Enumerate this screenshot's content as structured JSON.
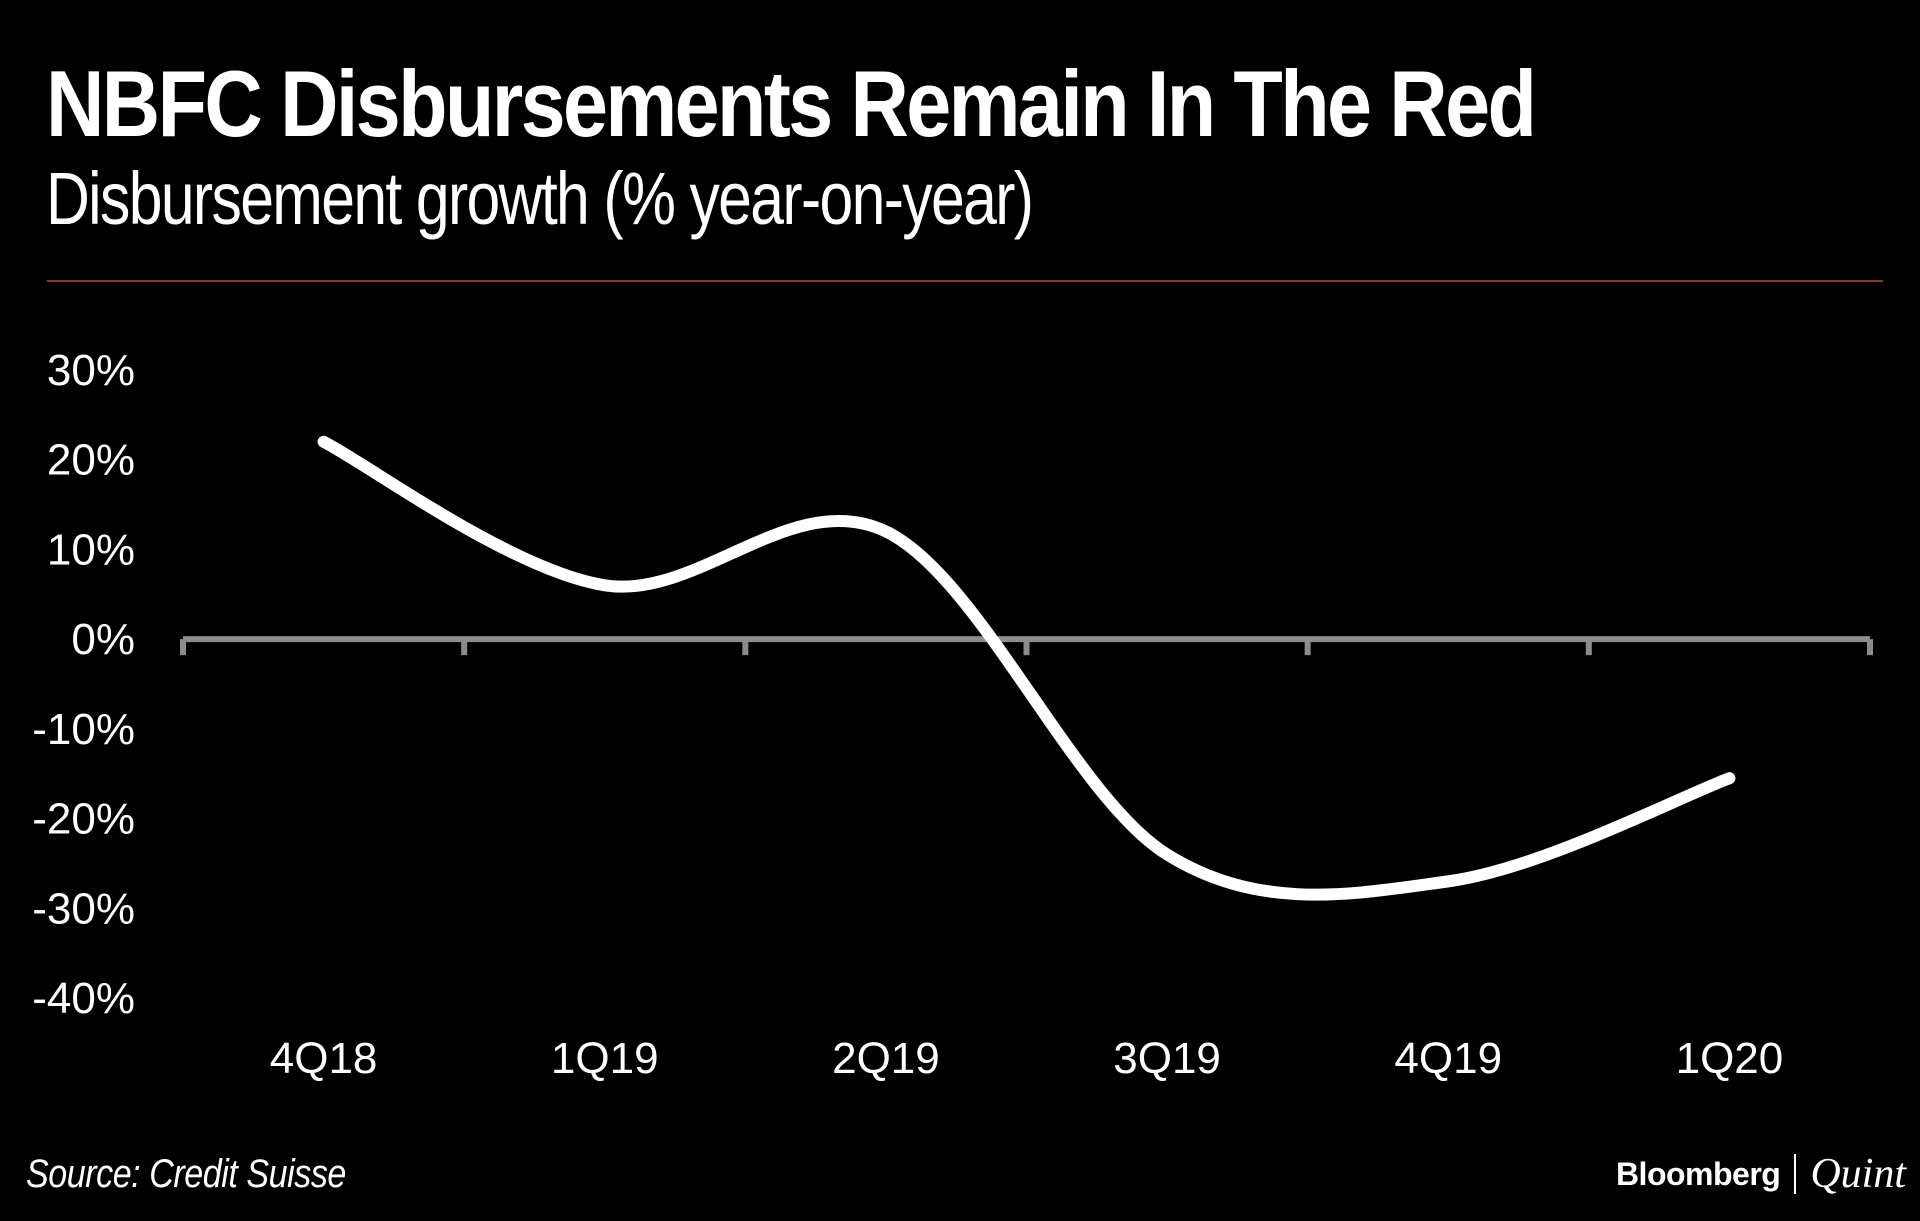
{
  "title": "NBFC Disbursements Remain In The Red",
  "subtitle": "Disbursement growth (% year-on-year)",
  "source": "Source: Credit Suisse",
  "brand": {
    "primary": "Bloomberg",
    "secondary": "Quint"
  },
  "colors": {
    "background": "#000000",
    "line": "#ffffff",
    "axis": "#8c8c8c",
    "rule": "#8a3a2a"
  },
  "chart_data": {
    "type": "line",
    "title": "NBFC Disbursements Remain In The Red",
    "subtitle": "Disbursement growth (% year-on-year)",
    "xlabel": "",
    "ylabel": "",
    "categories": [
      "4Q18",
      "1Q19",
      "2Q19",
      "3Q19",
      "4Q19",
      "1Q20"
    ],
    "series": [
      {
        "name": "Disbursement growth",
        "values": [
          22,
          6,
          12,
          -24,
          -27,
          -15.5
        ]
      }
    ],
    "ylim": [
      -40,
      30
    ],
    "yticks": [
      30,
      20,
      10,
      0,
      -10,
      -20,
      -30,
      -40
    ],
    "ytick_labels": [
      "30%",
      "20%",
      "10%",
      "0%",
      "-10%",
      "-20%",
      "-30%",
      "-40%"
    ],
    "grid": false,
    "legend": "none"
  }
}
